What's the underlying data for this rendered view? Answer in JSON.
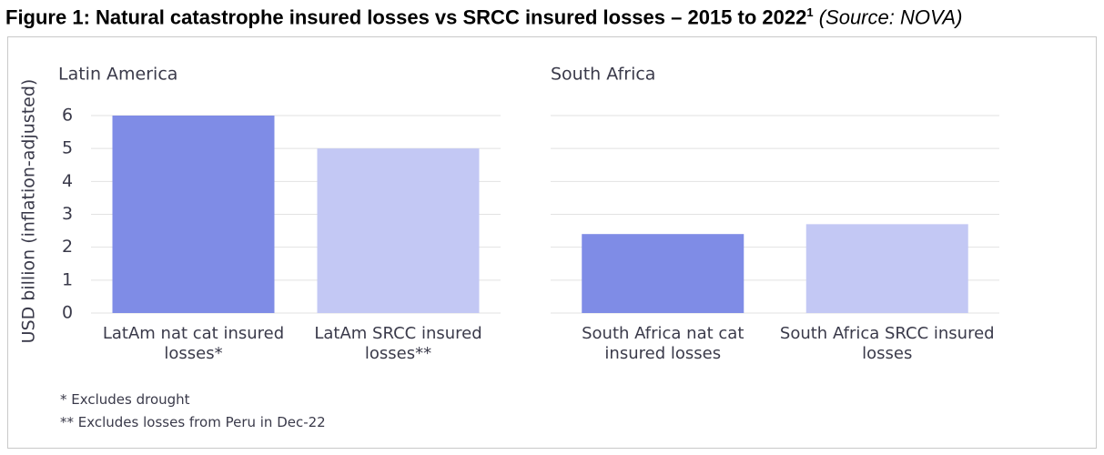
{
  "title": "Figure 1: Natural catastrophe insured losses vs SRCC insured losses – 2015 to 2022",
  "title_note": "1",
  "source": "(Source: NOVA)",
  "footnotes": [
    "* Excludes drought",
    "** Excludes losses from Peru in Dec-22"
  ],
  "chart_data": [
    {
      "type": "bar",
      "title": "Latin America",
      "ylabel": "USD billion (inflation-adjusted)",
      "categories": [
        "LatAm nat cat insured losses*",
        "LatAm SRCC insured losses**"
      ],
      "values": [
        6.0,
        5.0
      ],
      "colors": [
        "#7f8ce6",
        "#c3c8f4"
      ],
      "ylim": [
        0,
        6
      ],
      "yticks": [
        0,
        1,
        2,
        3,
        4,
        5,
        6
      ],
      "grid": true
    },
    {
      "type": "bar",
      "title": "South Africa",
      "categories": [
        "South Africa nat cat insured losses",
        "South Africa SRCC insured losses"
      ],
      "values": [
        2.4,
        2.7
      ],
      "colors": [
        "#7f8ce6",
        "#c3c8f4"
      ],
      "ylim": [
        0,
        6
      ],
      "sharey": true,
      "grid": true
    }
  ]
}
